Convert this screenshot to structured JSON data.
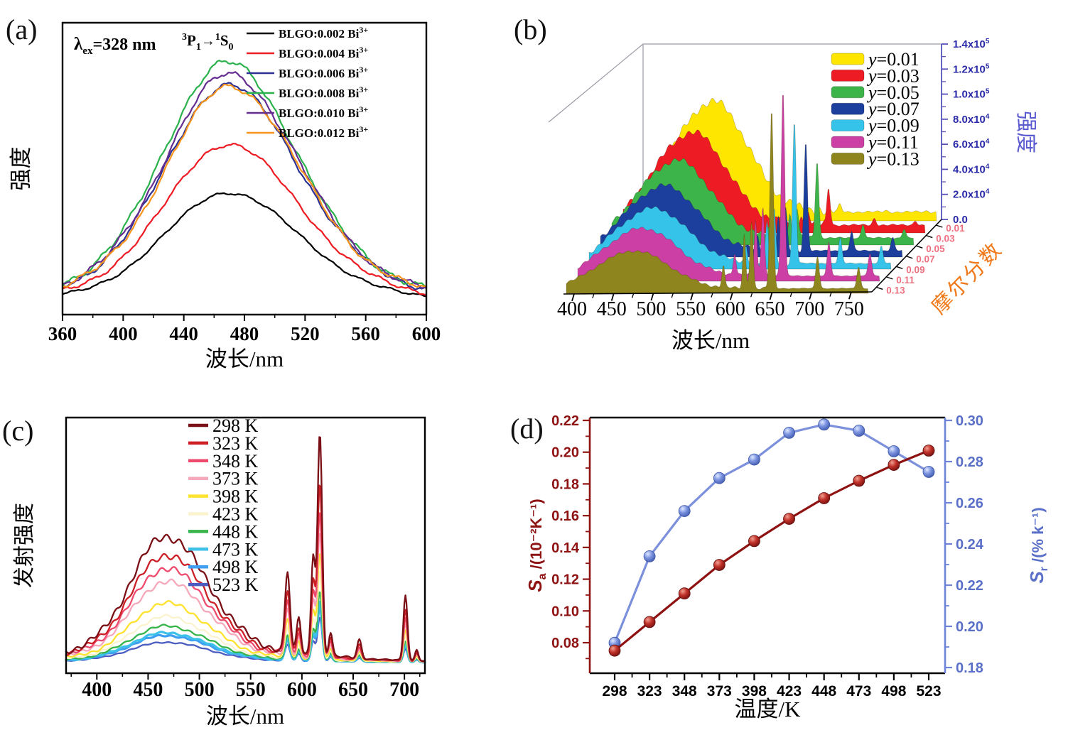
{
  "figure": {
    "background": "#ffffff"
  },
  "chart_data": [
    {
      "panel": "(a)",
      "type": "line",
      "xlabel": "波长/nm",
      "ylabel": "强度",
      "xlim": [
        360,
        600
      ],
      "x_ticks": [
        360,
        400,
        440,
        480,
        520,
        560,
        600
      ],
      "legend_position": "top-right",
      "annotations": {
        "excitation": {
          "pre": "λ",
          "sub": "ex",
          "post": "=328 nm"
        },
        "transition": {
          "sup1": "3",
          "p": "P",
          "sub1": "1",
          "arrow": "→",
          "sup2": "1",
          "s": "S",
          "sub2": "0"
        }
      },
      "series": [
        {
          "base": "BLGO:0.002 Bi",
          "sup": "3+",
          "color": "#000000",
          "peak_nm": 469,
          "rel_peak_intensity": 0.46
        },
        {
          "base": "BLGO:0.004 Bi",
          "sup": "3+",
          "color": "#ed1c24",
          "peak_nm": 469,
          "rel_peak_intensity": 0.66
        },
        {
          "base": "BLGO:0.006 Bi",
          "sup": "3+",
          "color": "#2e3192",
          "peak_nm": 469,
          "rel_peak_intensity": 0.905
        },
        {
          "base": "BLGO:0.008 Bi",
          "sup": "3+",
          "color": "#2bb24c",
          "peak_nm": 468,
          "rel_peak_intensity": 1.0
        },
        {
          "base": "BLGO:0.010 Bi",
          "sup": "3+",
          "color": "#662d91",
          "peak_nm": 469,
          "rel_peak_intensity": 0.95
        },
        {
          "base": "BLGO:0.012 Bi",
          "sup": "3+",
          "color": "#f7941d",
          "peak_nm": 470,
          "rel_peak_intensity": 0.9
        }
      ]
    },
    {
      "panel": "(b)",
      "type": "area-3d-waterfall",
      "xlabel": "波长/nm",
      "ylabel_right": {
        "text": "强度",
        "color": "#5b5bd0"
      },
      "zlabel": {
        "text": "摩尔分数",
        "color": "#f07818"
      },
      "xlim": [
        390,
        765
      ],
      "x_ticks": [
        400,
        450,
        500,
        550,
        600,
        650,
        700,
        750
      ],
      "intensity_max": 140000,
      "intensity_ticks": [
        {
          "m": "1.4x10",
          "e": "5"
        },
        {
          "m": "1.2x10",
          "e": "5"
        },
        {
          "m": "1.0x10",
          "e": "5"
        },
        {
          "m": "8.0x10",
          "e": "4"
        },
        {
          "m": "6.0x10",
          "e": "4"
        },
        {
          "m": "4.0x10",
          "e": "4"
        },
        {
          "m": "2.0x10",
          "e": "4"
        },
        {
          "m": "0.0",
          "e": ""
        }
      ],
      "mole_fraction_ticks": [
        "0.01",
        "0.03",
        "0.05",
        "0.07",
        "0.09",
        "0.11",
        "0.13"
      ],
      "sharp_peaks_nm": [
        585,
        611,
        620,
        645,
        702,
        753
      ],
      "series": [
        {
          "label": "y=0.01",
          "color": "#ffe600",
          "band_center_nm": 488,
          "band_intensity": 88000,
          "spike_intensity": 6000
        },
        {
          "label": "y=0.03",
          "color": "#ed1c24",
          "band_center_nm": 476,
          "band_intensity": 74000,
          "spike_intensity": 30000
        },
        {
          "label": "y=0.05",
          "color": "#3cb44a",
          "band_center_nm": 471,
          "band_intensity": 62000,
          "spike_intensity": 62000
        },
        {
          "label": "y=0.07",
          "color": "#1c3f9e",
          "band_center_nm": 469,
          "band_intensity": 52000,
          "spike_intensity": 88000
        },
        {
          "label": "y=0.09",
          "color": "#35c3ea",
          "band_center_nm": 470,
          "band_intensity": 44000,
          "spike_intensity": 115000
        },
        {
          "label": "y=0.11",
          "color": "#cc3fa4",
          "band_center_nm": 471,
          "band_intensity": 38000,
          "spike_intensity": 150000
        },
        {
          "label": "y=0.13",
          "color": "#8f851f",
          "band_center_nm": 475,
          "band_intensity": 30000,
          "spike_intensity": 145000
        }
      ]
    },
    {
      "panel": "(c)",
      "type": "line",
      "xlabel": "波长/nm",
      "ylabel": "发射强度",
      "xlim": [
        370,
        720
      ],
      "x_ticks": [
        400,
        450,
        500,
        550,
        600,
        650,
        700
      ],
      "band_center_nm": 467,
      "main_peak_nm": 617,
      "series": [
        {
          "label": "298 K",
          "color": "#7a1016",
          "band": 0.47,
          "spikes": 1.0
        },
        {
          "label": "323 K",
          "color": "#cc1f26",
          "band": 0.4,
          "spikes": 0.78
        },
        {
          "label": "348 K",
          "color": "#ee4a6e",
          "band": 0.35,
          "spikes": 0.66
        },
        {
          "label": "373 K",
          "color": "#f6a8bb",
          "band": 0.3,
          "spikes": 0.57
        },
        {
          "label": "398 K",
          "color": "#ffe22e",
          "band": 0.22,
          "spikes": 0.48
        },
        {
          "label": "423 K",
          "color": "#fbf3cd",
          "band": 0.17,
          "spikes": 0.4
        },
        {
          "label": "448 K",
          "color": "#36b449",
          "band": 0.135,
          "spikes": 0.31
        },
        {
          "label": "473 K",
          "color": "#3ec1e8",
          "band": 0.11,
          "spikes": 0.27
        },
        {
          "label": "498 K",
          "color": "#3d9ef2",
          "band": 0.1,
          "spikes": 0.25
        },
        {
          "label": "523 K",
          "color": "#4a5cc0",
          "band": 0.075,
          "spikes": 0.2
        }
      ]
    },
    {
      "panel": "(d)",
      "type": "scatter-line",
      "xlabel": "温度/K",
      "temperatures": [
        298,
        323,
        348,
        373,
        398,
        423,
        448,
        473,
        498,
        523
      ],
      "left_axis": {
        "label": {
          "s": "S",
          "sub": "a",
          "rest": " /(10⁻²K⁻¹)"
        },
        "color": "#8e1212",
        "ticks": [
          0.22,
          0.2,
          0.18,
          0.16,
          0.14,
          0.12,
          0.1,
          0.08
        ]
      },
      "right_axis": {
        "label": {
          "s": "S",
          "sub": "r",
          "rest": " /(% k⁻¹)"
        },
        "color": "#5a6fc8",
        "ticks": [
          0.3,
          0.28,
          0.26,
          0.24,
          0.22,
          0.2,
          0.18
        ]
      },
      "series": [
        {
          "name": "Sa",
          "axis": "left",
          "color": "#8e1212",
          "values": [
            0.075,
            0.093,
            0.111,
            0.129,
            0.144,
            0.158,
            0.171,
            0.182,
            0.192,
            0.201
          ]
        },
        {
          "name": "Sr",
          "axis": "right",
          "color": "#6d84d8",
          "values": [
            0.192,
            0.234,
            0.256,
            0.272,
            0.281,
            0.294,
            0.298,
            0.295,
            0.285,
            0.275
          ]
        }
      ]
    }
  ]
}
